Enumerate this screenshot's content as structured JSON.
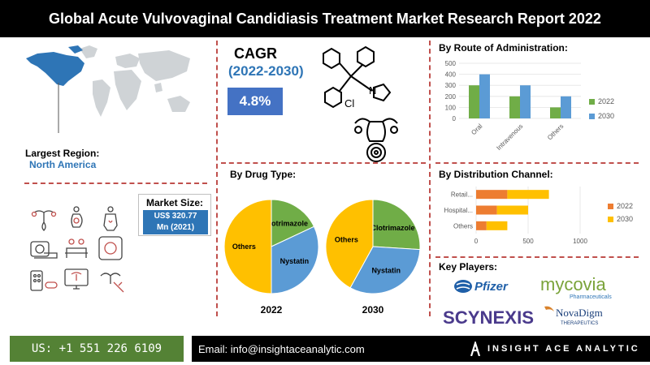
{
  "title": "Global Acute Vulvovaginal Candidiasis Treatment Market Research Report 2022",
  "region": {
    "label": "Largest Region:",
    "value": "North America"
  },
  "market_size": {
    "label": "Market Size:",
    "value_line1": "US$ 320.77",
    "value_line2": "Mn (2021)"
  },
  "cagr": {
    "label": "CAGR",
    "period": "(2022-2030)",
    "value": "4.8%"
  },
  "molecule": {
    "atom_n": "N",
    "atom_cl": "Cl"
  },
  "sections": {
    "route": "By Route of Administration:",
    "drug": "By Drug Type:",
    "distribution": "By Distribution Channel:",
    "players": "Key Players:"
  },
  "icons": [
    "uterus-icon",
    "pregnancy-icon",
    "female-body-icon",
    "mri-scanner-icon",
    "patients-icon",
    "ct-scanner-icon",
    "pills-icon",
    "ultrasound-monitor-icon",
    "injection-icon"
  ],
  "colors": {
    "blue": "#2e75b6",
    "green": "#70ad47",
    "chart_blue": "#5b9bd5",
    "orange": "#ed7d31",
    "yellow": "#ffc000",
    "accent_red": "#c0504d"
  },
  "chart_data": [
    {
      "id": "route",
      "type": "bar",
      "categories": [
        "Oral",
        "Intravenous",
        "Others"
      ],
      "series": [
        {
          "name": "2022",
          "values": [
            300,
            200,
            100
          ],
          "color": "#70ad47"
        },
        {
          "name": "2030",
          "values": [
            400,
            300,
            200
          ],
          "color": "#5b9bd5"
        }
      ],
      "yticks": [
        0,
        100,
        200,
        300,
        400,
        500
      ],
      "ylim": [
        0,
        500
      ],
      "legend": "right"
    },
    {
      "id": "distribution",
      "type": "bar",
      "orientation": "horizontal",
      "stacked": true,
      "categories": [
        "Retail...",
        "Hospital...",
        "Others"
      ],
      "series": [
        {
          "name": "2022",
          "values": [
            300,
            200,
            100
          ],
          "color": "#ed7d31"
        },
        {
          "name": "2030",
          "values": [
            400,
            300,
            200
          ],
          "color": "#ffc000"
        }
      ],
      "xticks": [
        0,
        500,
        1000
      ],
      "xlim": [
        0,
        1000
      ],
      "legend": "right"
    },
    {
      "id": "drug-2022",
      "type": "pie",
      "label": "2022",
      "slices": [
        {
          "name": "Clotrimazole",
          "value": 18,
          "color": "#70ad47"
        },
        {
          "name": "Nystatin",
          "value": 32,
          "color": "#5b9bd5"
        },
        {
          "name": "Others",
          "value": 50,
          "color": "#ffc000"
        }
      ]
    },
    {
      "id": "drug-2030",
      "type": "pie",
      "label": "2030",
      "slices": [
        {
          "name": "Clotrimazole",
          "value": 26,
          "color": "#70ad47"
        },
        {
          "name": "Nystatin",
          "value": 32,
          "color": "#5b9bd5"
        },
        {
          "name": "Others",
          "value": 42,
          "color": "#ffc000"
        }
      ]
    }
  ],
  "key_players": [
    {
      "name": "Pfizer",
      "display": "Pfizer"
    },
    {
      "name": "Mycovia",
      "display": "mycovia",
      "sub": "Pharmaceuticals"
    },
    {
      "name": "Scynexis",
      "display": "SCYNEXIS"
    },
    {
      "name": "NovaDigm",
      "display": "NovaDigm",
      "sub": "THERAPEUTICS"
    }
  ],
  "footer": {
    "phone": "US: +1 551 226 6109",
    "email": "Email: info@insightaceanalytic.com",
    "brand": "INSIGHT ACE ANALYTIC"
  }
}
